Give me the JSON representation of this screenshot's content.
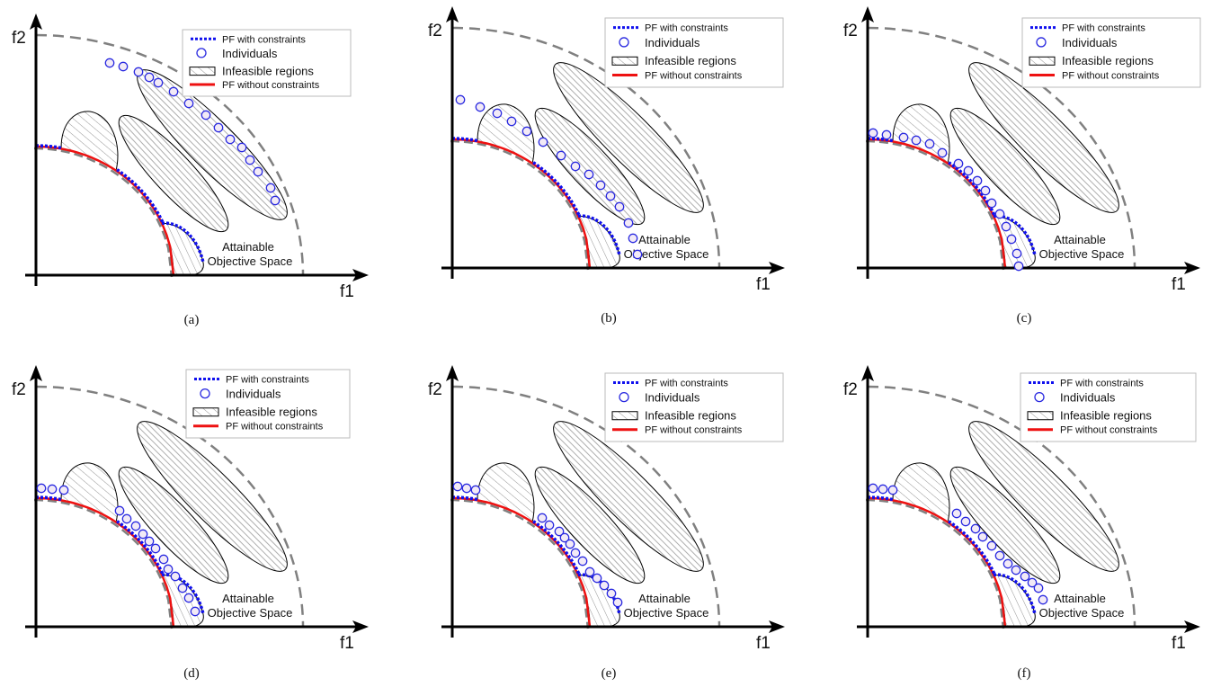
{
  "axes": {
    "x_label": "f1",
    "y_label": "f2"
  },
  "region_label": {
    "line1": "Attainable",
    "line2": "Objective Space"
  },
  "legend": {
    "pf_with_constraints": "PF with constraints",
    "individuals": "Individuals",
    "infeasible_regions": "Infeasible regions",
    "pf_without_constraints": "PF without constraints"
  },
  "colors": {
    "pf_with_constraints": "#1010ee",
    "individuals": "#2a2ae0",
    "individual_fill": "#f2eaf6",
    "pf_without_constraints": "#ee1111",
    "boundary_dashed": "#808080",
    "axes": "#000000"
  },
  "panels": [
    {
      "caption": "(a)"
    },
    {
      "caption": "(b)"
    },
    {
      "caption": "(c)"
    },
    {
      "caption": "(d)"
    },
    {
      "caption": "(e)"
    },
    {
      "caption": "(f)"
    }
  ]
}
